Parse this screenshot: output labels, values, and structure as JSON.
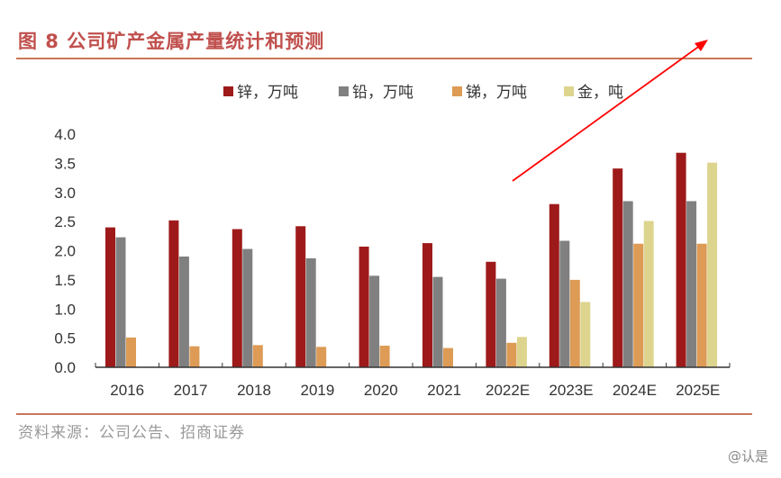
{
  "title": "图 8  公司矿产金属产量统计和预测",
  "source": "资料来源：公司公告、招商证券",
  "watermark": "@认是",
  "chart_data": {
    "type": "bar",
    "categories": [
      "2016",
      "2017",
      "2018",
      "2019",
      "2020",
      "2021",
      "2022E",
      "2023E",
      "2024E",
      "2025E"
    ],
    "series": [
      {
        "name": "锌，万吨",
        "color": "#9e1a1a",
        "values": [
          2.4,
          2.52,
          2.37,
          2.42,
          2.07,
          2.13,
          1.81,
          2.8,
          3.41,
          3.68
        ]
      },
      {
        "name": "铅，万吨",
        "color": "#808080",
        "values": [
          2.23,
          1.9,
          2.03,
          1.87,
          1.57,
          1.55,
          1.52,
          2.17,
          2.85,
          2.85
        ]
      },
      {
        "name": "锑，万吨",
        "color": "#dd9b55",
        "values": [
          0.51,
          0.36,
          0.38,
          0.35,
          0.37,
          0.33,
          0.42,
          1.5,
          2.12,
          2.12
        ]
      },
      {
        "name": "金，吨",
        "color": "#ddd48e",
        "values": [
          null,
          null,
          null,
          null,
          null,
          null,
          0.52,
          1.12,
          2.51,
          3.51
        ]
      }
    ],
    "yticks": [
      "0.0",
      "0.5",
      "1.0",
      "1.5",
      "2.0",
      "2.5",
      "3.0",
      "3.5",
      "4.0"
    ],
    "ylim": [
      0,
      4.0
    ],
    "grid": false,
    "legend": "top",
    "annotation": "red arrow pointing up-right"
  }
}
